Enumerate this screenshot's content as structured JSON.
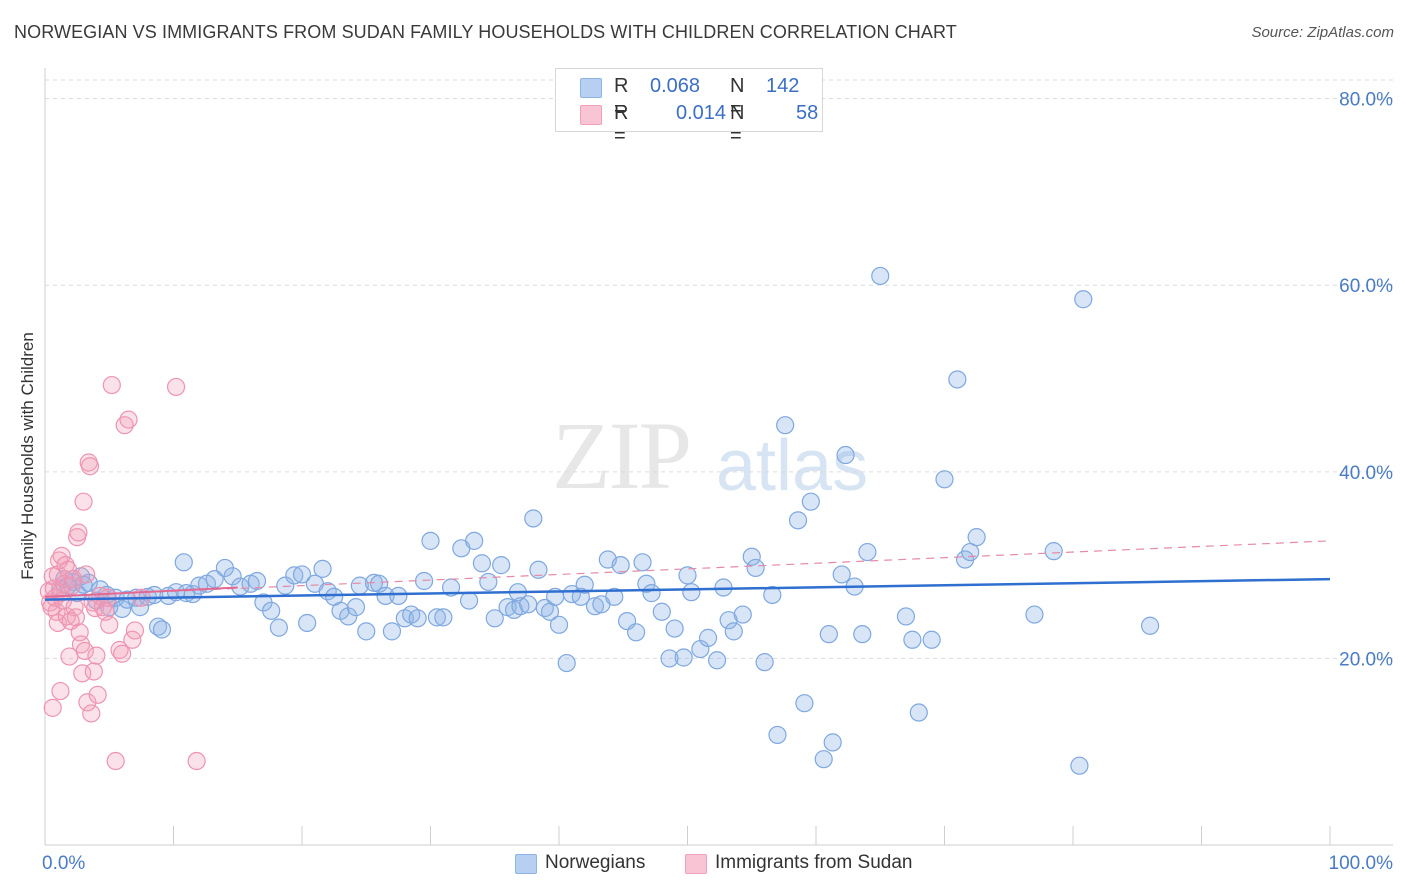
{
  "title": "NORWEGIAN VS IMMIGRANTS FROM SUDAN FAMILY HOUSEHOLDS WITH CHILDREN CORRELATION CHART",
  "source": "Source: ZipAtlas.com",
  "watermark": {
    "zip": "ZIP",
    "atlas": "atlas"
  },
  "legend": {
    "rows": [
      {
        "r_label": "R =",
        "r_value": "0.068",
        "n_label": "N =",
        "n_value": "142"
      },
      {
        "r_label": "R =",
        "r_value": "0.014",
        "n_label": "N =",
        "n_value": "58"
      }
    ]
  },
  "bottom_legend": {
    "series1": "Norwegians",
    "series2": "Immigrants from Sudan"
  },
  "colors": {
    "norwegians": "#8fb4e6",
    "sudan": "#f2a0b8",
    "trend_blue": "#2e6fd0",
    "trend_pink": "#e58aa8",
    "axis_text": "#4a7cc4"
  },
  "chart_data": {
    "type": "scatter",
    "title": "NORWEGIAN VS IMMIGRANTS FROM SUDAN FAMILY HOUSEHOLDS WITH CHILDREN CORRELATION CHART",
    "xlabel": "",
    "ylabel": "Family Households with Children",
    "xlim": [
      0,
      100
    ],
    "ylim": [
      0,
      82
    ],
    "y_ticks": [
      20,
      40,
      60,
      80
    ],
    "y_tick_labels": [
      "20.0%",
      "40.0%",
      "60.0%",
      "80.0%"
    ],
    "x_tick_labels": [
      "0.0%",
      "100.0%"
    ],
    "series": [
      {
        "name": "Norwegians",
        "trend": {
          "x0": 0,
          "y0": 26.3,
          "x1": 100,
          "y1": 28.5
        },
        "points": [
          [
            1.2,
            27.5
          ],
          [
            1.5,
            28.5
          ],
          [
            1.8,
            27.8
          ],
          [
            2.2,
            28.2
          ],
          [
            2.5,
            27.0
          ],
          [
            2.8,
            28.8
          ],
          [
            3.0,
            27.9
          ],
          [
            3.4,
            28.1
          ],
          [
            4.0,
            26.2
          ],
          [
            4.3,
            27.4
          ],
          [
            4.8,
            26.8
          ],
          [
            5.0,
            25.5
          ],
          [
            5.5,
            26.5
          ],
          [
            6.0,
            25.3
          ],
          [
            6.4,
            26.3
          ],
          [
            7.1,
            26.5
          ],
          [
            7.4,
            25.5
          ],
          [
            8.0,
            26.6
          ],
          [
            8.5,
            26.8
          ],
          [
            8.8,
            23.4
          ],
          [
            9.1,
            23.1
          ],
          [
            9.6,
            26.7
          ],
          [
            10.2,
            27.1
          ],
          [
            10.8,
            30.3
          ],
          [
            11.0,
            27.0
          ],
          [
            11.5,
            26.9
          ],
          [
            12.0,
            27.8
          ],
          [
            12.6,
            28.0
          ],
          [
            13.2,
            28.5
          ],
          [
            14.0,
            29.7
          ],
          [
            14.6,
            28.8
          ],
          [
            15.2,
            27.7
          ],
          [
            16.0,
            28.0
          ],
          [
            16.5,
            28.3
          ],
          [
            17.0,
            26.0
          ],
          [
            17.6,
            25.1
          ],
          [
            18.2,
            23.3
          ],
          [
            18.7,
            27.8
          ],
          [
            19.4,
            28.9
          ],
          [
            20.0,
            29.0
          ],
          [
            20.4,
            23.8
          ],
          [
            21.0,
            28.0
          ],
          [
            21.6,
            29.6
          ],
          [
            22.0,
            27.2
          ],
          [
            22.5,
            26.6
          ],
          [
            23.0,
            25.1
          ],
          [
            23.6,
            24.5
          ],
          [
            24.2,
            25.5
          ],
          [
            24.5,
            27.8
          ],
          [
            25.0,
            22.9
          ],
          [
            25.6,
            28.1
          ],
          [
            26.0,
            28.0
          ],
          [
            26.5,
            26.7
          ],
          [
            27.0,
            22.9
          ],
          [
            27.5,
            26.7
          ],
          [
            28.0,
            24.3
          ],
          [
            28.5,
            24.7
          ],
          [
            29.0,
            24.3
          ],
          [
            29.5,
            28.3
          ],
          [
            30.0,
            32.6
          ],
          [
            30.5,
            24.4
          ],
          [
            31.0,
            24.4
          ],
          [
            31.6,
            27.6
          ],
          [
            32.4,
            31.8
          ],
          [
            33.0,
            26.2
          ],
          [
            33.4,
            32.6
          ],
          [
            34.0,
            30.2
          ],
          [
            34.5,
            28.2
          ],
          [
            35.0,
            24.3
          ],
          [
            35.5,
            30.0
          ],
          [
            36.0,
            25.5
          ],
          [
            36.5,
            25.2
          ],
          [
            36.8,
            27.1
          ],
          [
            37.0,
            25.6
          ],
          [
            37.6,
            25.8
          ],
          [
            38.0,
            35.0
          ],
          [
            38.4,
            29.5
          ],
          [
            38.9,
            25.4
          ],
          [
            39.3,
            25.0
          ],
          [
            39.7,
            26.6
          ],
          [
            40.0,
            23.6
          ],
          [
            40.6,
            19.5
          ],
          [
            41.0,
            26.9
          ],
          [
            41.7,
            26.6
          ],
          [
            42.0,
            27.9
          ],
          [
            42.8,
            25.6
          ],
          [
            43.3,
            25.8
          ],
          [
            43.8,
            30.6
          ],
          [
            44.3,
            26.6
          ],
          [
            44.8,
            30.0
          ],
          [
            45.3,
            24.0
          ],
          [
            46.0,
            22.8
          ],
          [
            46.5,
            30.3
          ],
          [
            46.8,
            28.0
          ],
          [
            47.2,
            27.0
          ],
          [
            48.0,
            25.0
          ],
          [
            48.6,
            20.0
          ],
          [
            49.0,
            23.2
          ],
          [
            49.7,
            20.1
          ],
          [
            50.0,
            28.9
          ],
          [
            50.3,
            27.1
          ],
          [
            51.0,
            21.0
          ],
          [
            51.6,
            22.2
          ],
          [
            52.3,
            19.8
          ],
          [
            52.8,
            27.6
          ],
          [
            53.2,
            24.1
          ],
          [
            53.6,
            22.9
          ],
          [
            54.3,
            24.7
          ],
          [
            55.0,
            30.9
          ],
          [
            55.3,
            29.7
          ],
          [
            56.0,
            19.6
          ],
          [
            56.6,
            26.8
          ],
          [
            57.0,
            11.8
          ],
          [
            57.6,
            45.0
          ],
          [
            58.6,
            34.8
          ],
          [
            59.1,
            15.2
          ],
          [
            59.6,
            36.8
          ],
          [
            60.6,
            9.2
          ],
          [
            61.0,
            22.6
          ],
          [
            61.3,
            11.0
          ],
          [
            62.3,
            41.8
          ],
          [
            63.0,
            27.7
          ],
          [
            63.6,
            22.6
          ],
          [
            64.0,
            31.4
          ],
          [
            65.0,
            61.0
          ],
          [
            67.0,
            24.5
          ],
          [
            67.5,
            22.0
          ],
          [
            68.0,
            14.2
          ],
          [
            69.0,
            22.0
          ],
          [
            70.0,
            39.2
          ],
          [
            71.0,
            49.9
          ],
          [
            71.6,
            30.6
          ],
          [
            72.0,
            31.4
          ],
          [
            72.5,
            33.0
          ],
          [
            77.0,
            24.7
          ],
          [
            78.5,
            31.5
          ],
          [
            80.5,
            8.5
          ],
          [
            80.8,
            58.5
          ],
          [
            86.0,
            23.5
          ],
          [
            62.0,
            29.0
          ]
        ]
      },
      {
        "name": "Immigrants from Sudan",
        "trend": {
          "x0": 0,
          "y0": 26.6,
          "x1": 100,
          "y1": 32.6
        },
        "points": [
          [
            0.3,
            27.2
          ],
          [
            0.4,
            26.0
          ],
          [
            0.5,
            25.5
          ],
          [
            0.6,
            28.8
          ],
          [
            0.7,
            27.5
          ],
          [
            0.8,
            26.5
          ],
          [
            0.9,
            25.0
          ],
          [
            1.0,
            23.8
          ],
          [
            1.0,
            29.0
          ],
          [
            1.1,
            30.5
          ],
          [
            1.2,
            27.0
          ],
          [
            1.3,
            31.0
          ],
          [
            1.4,
            26.2
          ],
          [
            1.5,
            28.0
          ],
          [
            1.6,
            30.0
          ],
          [
            1.7,
            24.5
          ],
          [
            1.8,
            29.5
          ],
          [
            1.9,
            20.2
          ],
          [
            2.0,
            24.0
          ],
          [
            2.1,
            27.8
          ],
          [
            2.2,
            28.5
          ],
          [
            2.3,
            25.5
          ],
          [
            2.4,
            24.4
          ],
          [
            2.5,
            33.0
          ],
          [
            2.6,
            33.5
          ],
          [
            2.7,
            22.8
          ],
          [
            2.8,
            21.5
          ],
          [
            2.9,
            18.4
          ],
          [
            3.0,
            36.8
          ],
          [
            3.1,
            20.8
          ],
          [
            3.2,
            29.0
          ],
          [
            3.3,
            15.3
          ],
          [
            3.4,
            41.0
          ],
          [
            3.5,
            40.6
          ],
          [
            3.6,
            14.1
          ],
          [
            3.7,
            26.0
          ],
          [
            3.8,
            18.6
          ],
          [
            3.9,
            25.4
          ],
          [
            4.0,
            20.3
          ],
          [
            4.1,
            16.1
          ],
          [
            4.3,
            26.7
          ],
          [
            4.5,
            25.5
          ],
          [
            4.7,
            25.0
          ],
          [
            4.9,
            26.5
          ],
          [
            5.0,
            23.6
          ],
          [
            5.2,
            49.3
          ],
          [
            5.5,
            9.0
          ],
          [
            5.8,
            20.9
          ],
          [
            6.0,
            20.5
          ],
          [
            6.2,
            45.0
          ],
          [
            6.5,
            45.6
          ],
          [
            6.8,
            22.0
          ],
          [
            7.0,
            23.0
          ],
          [
            7.5,
            26.5
          ],
          [
            10.2,
            49.1
          ],
          [
            11.8,
            9.0
          ],
          [
            0.6,
            14.7
          ],
          [
            1.2,
            16.5
          ]
        ]
      }
    ]
  }
}
